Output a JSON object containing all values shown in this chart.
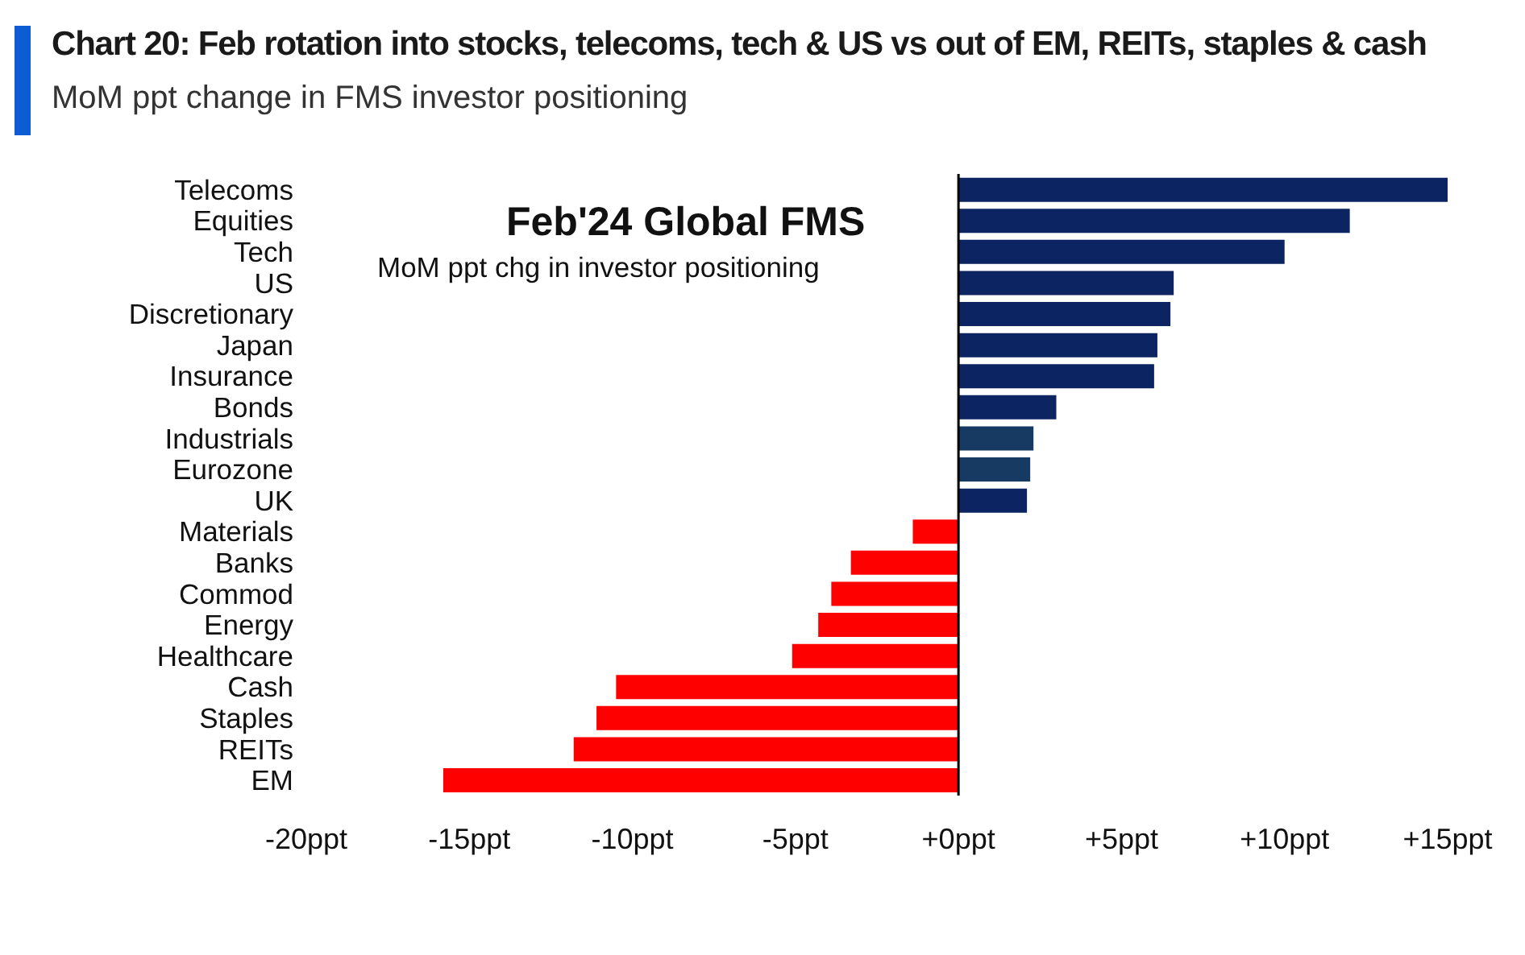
{
  "chart_data": {
    "type": "bar",
    "orientation": "horizontal",
    "title": "Chart 20: Feb rotation into stocks, telecoms, tech & US vs out of EM, REITs, staples & cash",
    "subtitle": "MoM ppt change in FMS investor positioning",
    "categories": [
      "Telecoms",
      "Equities",
      "Tech",
      "US",
      "Discretionary",
      "Japan",
      "Insurance",
      "Bonds",
      "Industrials",
      "Eurozone",
      "UK",
      "Materials",
      "Banks",
      "Commod",
      "Energy",
      "Healthcare",
      "Cash",
      "Staples",
      "REITs",
      "EM"
    ],
    "values": [
      15.0,
      12.0,
      10.0,
      6.6,
      6.5,
      6.1,
      6.0,
      3.0,
      2.3,
      2.2,
      2.1,
      -1.4,
      -3.3,
      -3.9,
      -4.3,
      -5.1,
      -10.5,
      -11.1,
      -11.8,
      -15.8
    ],
    "colors": [
      "#0c2461",
      "#0c2461",
      "#0c2461",
      "#0c2461",
      "#0c2461",
      "#0c2461",
      "#0c2461",
      "#0c2461",
      "#173a63",
      "#173a63",
      "#0c2461",
      "#ff0000",
      "#ff0000",
      "#ff0000",
      "#ff0000",
      "#ff0000",
      "#ff0000",
      "#ff0000",
      "#ff0000",
      "#ff0000"
    ],
    "xlim": [
      -20,
      15
    ],
    "xticks": [
      {
        "value": -20,
        "label": "-20ppt"
      },
      {
        "value": -15,
        "label": "-15ppt"
      },
      {
        "value": -10,
        "label": "-10ppt"
      },
      {
        "value": -5,
        "label": "-5ppt"
      },
      {
        "value": 0,
        "label": "+0ppt"
      },
      {
        "value": 5,
        "label": "+5ppt"
      },
      {
        "value": 10,
        "label": "+10ppt"
      },
      {
        "value": 15,
        "label": "+15ppt"
      }
    ],
    "ref_lines": [
      {
        "axis": "x",
        "value": 0,
        "color": "#000000"
      }
    ],
    "annotations": [
      "Feb'24 Global FMS",
      "MoM ppt chg in investor positioning"
    ],
    "grid": false,
    "legend": false
  }
}
